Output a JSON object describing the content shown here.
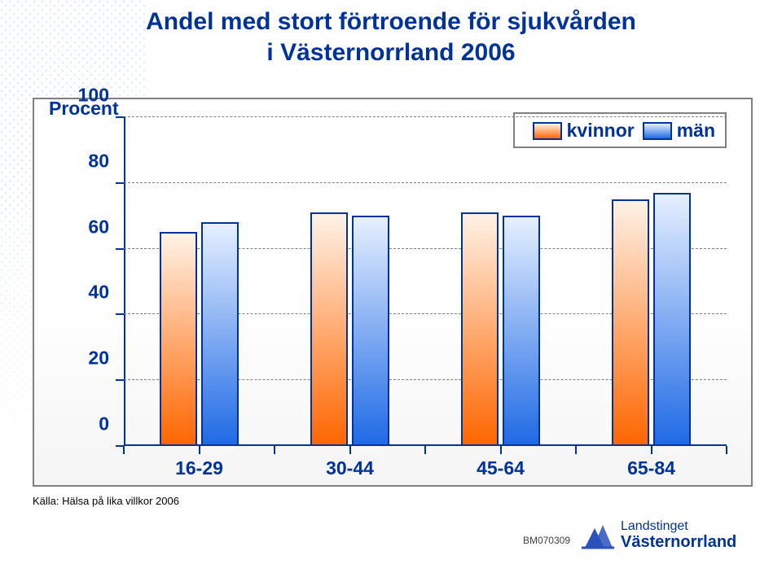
{
  "title_line1": "Andel med stort förtroende för sjukvården",
  "title_line2": "i Västernorrland 2006",
  "title_fontsize": 30,
  "title_color": "#003399",
  "chart": {
    "type": "bar",
    "y_title": "Procent",
    "ylim": [
      0,
      100
    ],
    "ytick_step": 20,
    "yticks": [
      0,
      20,
      40,
      60,
      80,
      100
    ],
    "categories": [
      "16-29",
      "30-44",
      "45-64",
      "65-84"
    ],
    "series": [
      {
        "name": "kvinnor",
        "values": [
          65,
          71,
          71,
          75
        ],
        "fill_top": "#fff2e6",
        "fill_bottom": "#ff6600",
        "border": "#003399"
      },
      {
        "name": "män",
        "values": [
          68,
          70,
          70,
          77
        ],
        "fill_top": "#e6f0ff",
        "fill_bottom": "#1f6ae5",
        "border": "#003399"
      }
    ],
    "axis_color": "#003399",
    "grid_color": "#808080",
    "background_top": "#ffffff",
    "background_bottom": "#f2f2f2",
    "axis_fontsize": 23,
    "legend_fontsize": 23,
    "bar_width_pct": 6.2,
    "group_gap_pct": 0.8,
    "legend_position": "top-right"
  },
  "source": "Källa: Hälsa på lika villkor 2006",
  "footer_id": "BM070309",
  "logo": {
    "line1": "Landstinget",
    "line2": "Västernorrland"
  }
}
